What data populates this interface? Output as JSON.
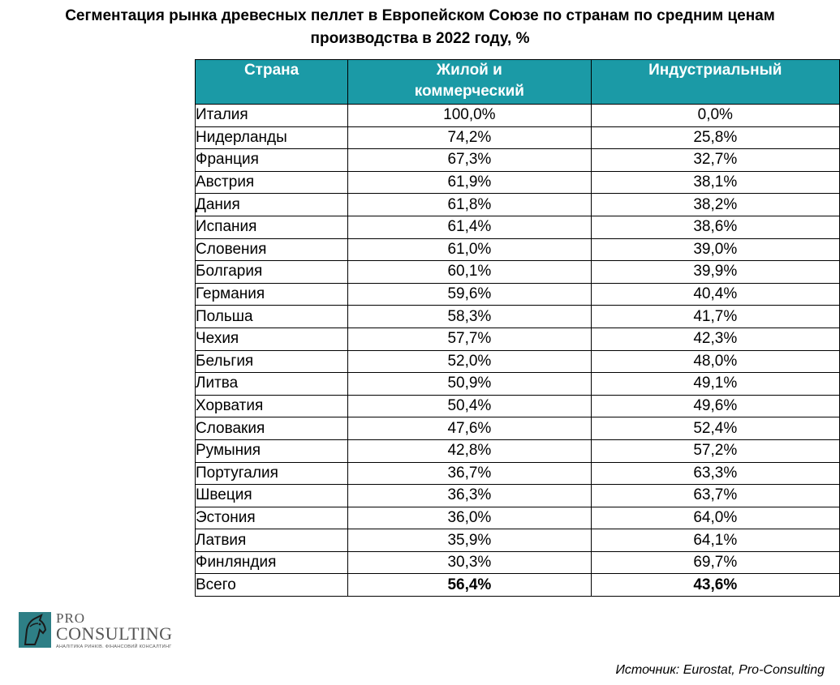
{
  "title": {
    "line1": "Сегментация рынка древесных пеллет в Европейском Союзе по странам по средним ценам",
    "line2": "производства в 2022 году, %"
  },
  "table": {
    "headers": {
      "country": "Страна",
      "residential_line1": "Жилой и",
      "residential_line2": "коммерческий",
      "industrial": "Индустриальный"
    },
    "rows": [
      {
        "country": "Италия",
        "residential": "100,0%",
        "industrial": "0,0%"
      },
      {
        "country": "Нидерланды",
        "residential": "74,2%",
        "industrial": "25,8%"
      },
      {
        "country": "Франция",
        "residential": "67,3%",
        "industrial": "32,7%"
      },
      {
        "country": "Австрия",
        "residential": "61,9%",
        "industrial": "38,1%"
      },
      {
        "country": "Дания",
        "residential": "61,8%",
        "industrial": "38,2%"
      },
      {
        "country": "Испания",
        "residential": "61,4%",
        "industrial": "38,6%"
      },
      {
        "country": "Словения",
        "residential": "61,0%",
        "industrial": "39,0%"
      },
      {
        "country": "Болгария",
        "residential": "60,1%",
        "industrial": "39,9%"
      },
      {
        "country": "Германия",
        "residential": "59,6%",
        "industrial": "40,4%"
      },
      {
        "country": "Польша",
        "residential": "58,3%",
        "industrial": "41,7%"
      },
      {
        "country": "Чехия",
        "residential": "57,7%",
        "industrial": "42,3%"
      },
      {
        "country": "Бельгия",
        "residential": "52,0%",
        "industrial": "48,0%"
      },
      {
        "country": "Литва",
        "residential": "50,9%",
        "industrial": "49,1%"
      },
      {
        "country": "Хорватия",
        "residential": "50,4%",
        "industrial": "49,6%"
      },
      {
        "country": "Словакия",
        "residential": "47,6%",
        "industrial": "52,4%"
      },
      {
        "country": "Румыния",
        "residential": "42,8%",
        "industrial": "57,2%"
      },
      {
        "country": "Португалия",
        "residential": "36,7%",
        "industrial": "63,3%"
      },
      {
        "country": "Швеция",
        "residential": "36,3%",
        "industrial": "63,7%"
      },
      {
        "country": "Эстония",
        "residential": "36,0%",
        "industrial": "64,0%"
      },
      {
        "country": "Латвия",
        "residential": "35,9%",
        "industrial": "64,1%"
      },
      {
        "country": "Финляндия",
        "residential": "30,3%",
        "industrial": "69,7%"
      }
    ],
    "total": {
      "country": "Всего",
      "residential": "56,4%",
      "industrial": "43,6%"
    }
  },
  "logo": {
    "pro": "PRO",
    "name": "CONSULTING",
    "tagline": "АНАЛІТИКА РИНКІВ. ФІНАНСОВИЙ КОНСАЛТИНГ",
    "mark_color": "#2e7f86"
  },
  "source": "Источник: Eurostat, Pro-Consulting",
  "colors": {
    "header_bg": "#1b9aa6",
    "header_text": "#ffffff"
  }
}
